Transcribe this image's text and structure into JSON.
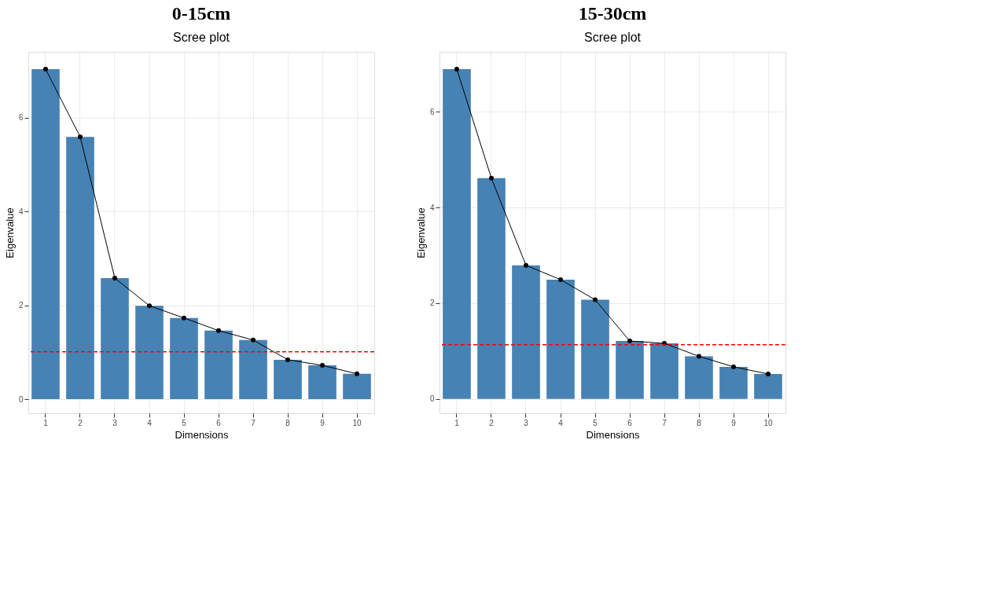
{
  "chart_data": [
    {
      "type": "bar",
      "title": "0-15cm",
      "subtitle": "Scree plot",
      "xlabel": "Dimensions",
      "ylabel": "Eigenvalue",
      "categories": [
        "1",
        "2",
        "3",
        "4",
        "5",
        "6",
        "7",
        "8",
        "9",
        "10"
      ],
      "series": [
        {
          "color": "#4682b4",
          "values": [
            7.03,
            5.59,
            2.58,
            1.99,
            1.73,
            1.46,
            1.26,
            0.84,
            0.72,
            0.54
          ]
        },
        {
          "type": "line",
          "color": "#000000",
          "values": [
            7.03,
            5.59,
            2.58,
            1.99,
            1.73,
            1.46,
            1.26,
            0.84,
            0.72,
            0.54
          ]
        }
      ],
      "ylim": [
        -0.3,
        7.4
      ],
      "yticks": [
        0,
        2,
        4,
        6
      ],
      "grid": true,
      "marker": "circle",
      "ref_lines": [
        {
          "axis": "y",
          "value": 1.01,
          "color": "#ff0000",
          "line_style": "dashed"
        }
      ]
    },
    {
      "type": "bar",
      "title": "15-30cm",
      "subtitle": "Scree plot",
      "xlabel": "Dimensions",
      "ylabel": "Eigenvalue",
      "categories": [
        "1",
        "2",
        "3",
        "4",
        "5",
        "6",
        "7",
        "8",
        "9",
        "10"
      ],
      "series": [
        {
          "color": "#4682b4",
          "values": [
            6.89,
            4.61,
            2.79,
            2.49,
            2.07,
            1.21,
            1.16,
            0.89,
            0.67,
            0.52
          ]
        },
        {
          "type": "line",
          "color": "#000000",
          "values": [
            6.89,
            4.61,
            2.79,
            2.49,
            2.07,
            1.21,
            1.16,
            0.89,
            0.67,
            0.52
          ]
        }
      ],
      "ylim": [
        -0.3,
        7.25
      ],
      "yticks": [
        0,
        2,
        4,
        6
      ],
      "grid": true,
      "marker": "circle",
      "ref_lines": [
        {
          "axis": "y",
          "value": 1.13,
          "color": "#ff0000",
          "line_style": "dashed"
        }
      ]
    }
  ]
}
